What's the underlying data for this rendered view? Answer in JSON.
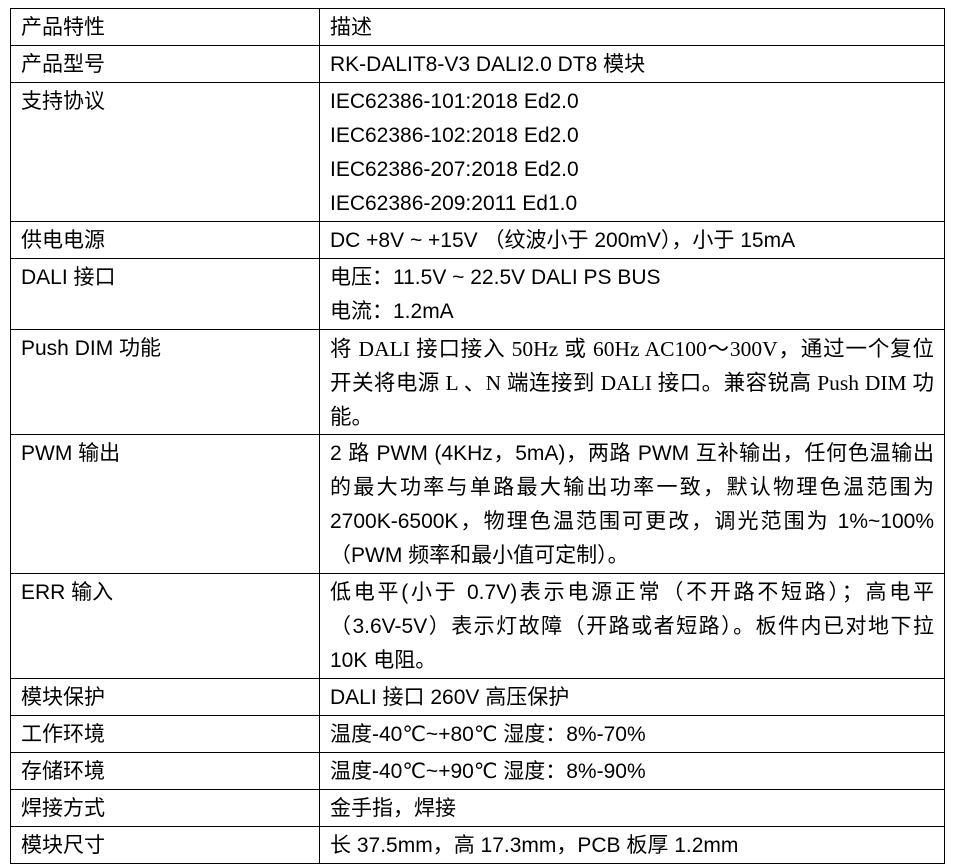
{
  "header": {
    "key": "产品特性",
    "value": "描述"
  },
  "rows": [
    {
      "key": "产品型号",
      "lines": [
        "RK-DALIT8-V3 DALI2.0 DT8 模块"
      ]
    },
    {
      "key": "支持协议",
      "lines": [
        "IEC62386-101:2018 Ed2.0",
        "IEC62386-102:2018 Ed2.0",
        "IEC62386-207:2018 Ed2.0",
        "IEC62386-209:2011 Ed1.0"
      ]
    },
    {
      "key": "供电电源",
      "lines": [
        "DC +8V ~ +15V （纹波小于 200mV），小于 15mA"
      ]
    },
    {
      "key": "DALI 接口",
      "lines": [
        "电压：11.5V ~ 22.5V DALI PS BUS",
        "电流：1.2mA"
      ]
    },
    {
      "key": "Push DIM 功能",
      "text": "将 DALI 接口接入 50Hz 或 60Hz AC100～300V，通过一个复位开关将电源 L 、N 端连接到 DALI 接口。兼容锐高 Push DIM 功能。"
    },
    {
      "key": "PWM 输出",
      "text": "2 路 PWM (4KHz，5mA)，两路 PWM 互补输出，任何色温输出的最大功率与单路最大输出功率一致，默认物理色温范围为 2700K-6500K，物理色温范围可更改，调光范围为 1%~100%（PWM 频率和最小值可定制）。"
    },
    {
      "key": "ERR 输入",
      "text": "低电平(小于 0.7V)表示电源正常（不开路不短路）；高电平（3.6V-5V）表示灯故障（开路或者短路）。板件内已对地下拉 10K 电阻。"
    },
    {
      "key": "模块保护",
      "lines": [
        "DALI 接口 260V 高压保护"
      ]
    },
    {
      "key": "工作环境",
      "lines": [
        "温度-40℃~+80℃  湿度：8%-70%"
      ]
    },
    {
      "key": "存储环境",
      "lines": [
        "温度-40℃~+90℃  湿度：8%-90%"
      ]
    },
    {
      "key": "焊接方式",
      "lines": [
        "金手指，焊接"
      ]
    },
    {
      "key": "模块尺寸",
      "lines": [
        "长 37.5mm，高 17.3mm，PCB 板厚 1.2mm"
      ]
    }
  ]
}
